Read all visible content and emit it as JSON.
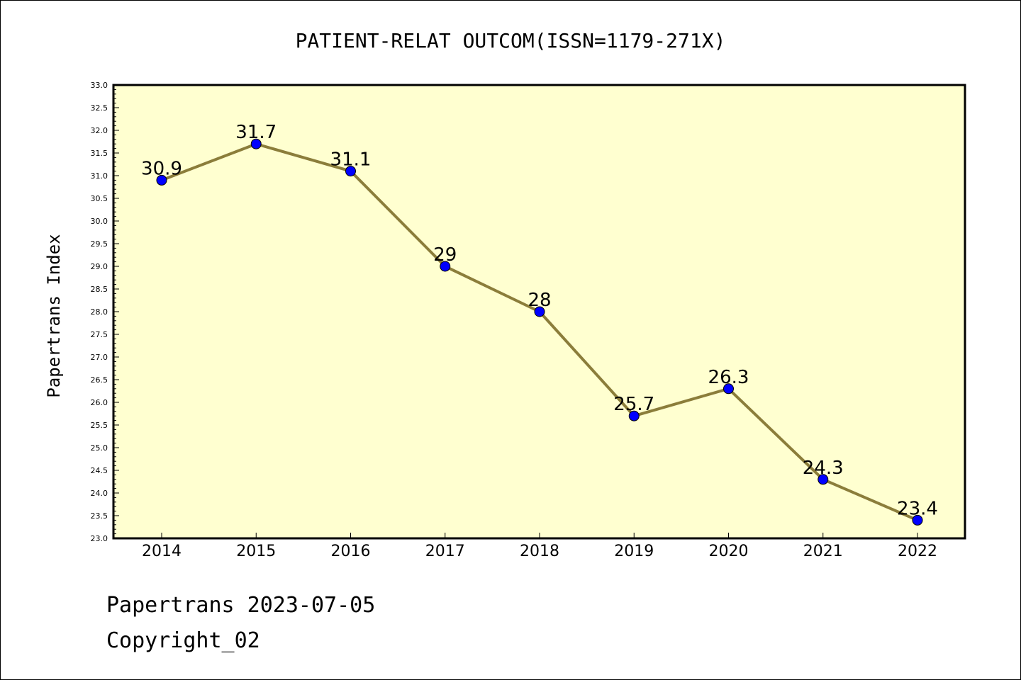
{
  "chart_data": {
    "type": "line",
    "title": "PATIENT-RELAT OUTCOM(ISSN=1179-271X)",
    "xlabel": "",
    "ylabel": "Papertrans Index",
    "categories": [
      "2014",
      "2015",
      "2016",
      "2017",
      "2018",
      "2019",
      "2020",
      "2021",
      "2022"
    ],
    "series": [
      {
        "values": [
          30.9,
          31.7,
          31.1,
          29,
          28,
          25.7,
          26.3,
          24.3,
          23.4
        ],
        "labels": [
          "30.9",
          "31.7",
          "31.1",
          "29",
          "28",
          "25.7",
          "26.3",
          "24.3",
          "23.4"
        ]
      }
    ],
    "ylim": [
      23.0,
      33.0
    ],
    "yticks": [
      "23.0",
      "23.5",
      "24.0",
      "24.5",
      "25.0",
      "25.5",
      "26.0",
      "26.5",
      "27.0",
      "27.5",
      "28.0",
      "28.5",
      "29.0",
      "29.5",
      "30.0",
      "30.5",
      "31.0",
      "31.5",
      "32.0",
      "32.5",
      "33.0"
    ],
    "grid": false,
    "legend": "none",
    "colors": {
      "plot_background": "#FFFFD0",
      "line": "#8B7D3A",
      "marker": "#0000FF"
    }
  },
  "footer": {
    "line1": "Papertrans 2023-07-05",
    "line2": "Copyright_02"
  }
}
